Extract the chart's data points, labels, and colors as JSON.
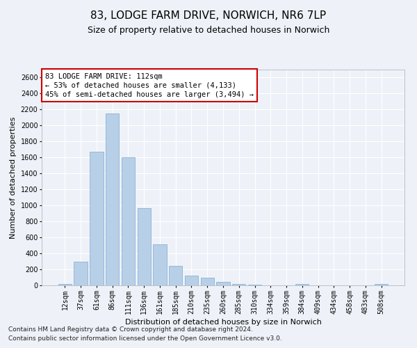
{
  "title": "83, LODGE FARM DRIVE, NORWICH, NR6 7LP",
  "subtitle": "Size of property relative to detached houses in Norwich",
  "xlabel": "Distribution of detached houses by size in Norwich",
  "ylabel": "Number of detached properties",
  "categories": [
    "12sqm",
    "37sqm",
    "61sqm",
    "86sqm",
    "111sqm",
    "136sqm",
    "161sqm",
    "185sqm",
    "210sqm",
    "235sqm",
    "260sqm",
    "285sqm",
    "310sqm",
    "334sqm",
    "359sqm",
    "384sqm",
    "409sqm",
    "434sqm",
    "458sqm",
    "483sqm",
    "508sqm"
  ],
  "values": [
    20,
    300,
    1670,
    2150,
    1600,
    970,
    510,
    245,
    120,
    100,
    40,
    15,
    5,
    3,
    2,
    20,
    2,
    3,
    1,
    1,
    20
  ],
  "bar_color": "#b8cfe8",
  "bar_edge_color": "#7aaad0",
  "annotation_title": "83 LODGE FARM DRIVE: 112sqm",
  "annotation_line1": "← 53% of detached houses are smaller (4,133)",
  "annotation_line2": "45% of semi-detached houses are larger (3,494) →",
  "annotation_box_facecolor": "#ffffff",
  "annotation_box_edgecolor": "#cc0000",
  "ylim": [
    0,
    2700
  ],
  "yticks": [
    0,
    200,
    400,
    600,
    800,
    1000,
    1200,
    1400,
    1600,
    1800,
    2000,
    2200,
    2400,
    2600
  ],
  "footer1": "Contains HM Land Registry data © Crown copyright and database right 2024.",
  "footer2": "Contains public sector information licensed under the Open Government Licence v3.0.",
  "bg_color": "#eef2f8",
  "grid_color": "#ffffff",
  "title_fontsize": 11,
  "subtitle_fontsize": 9,
  "label_fontsize": 8,
  "tick_fontsize": 7,
  "annotation_fontsize": 7.5,
  "footer_fontsize": 6.5
}
